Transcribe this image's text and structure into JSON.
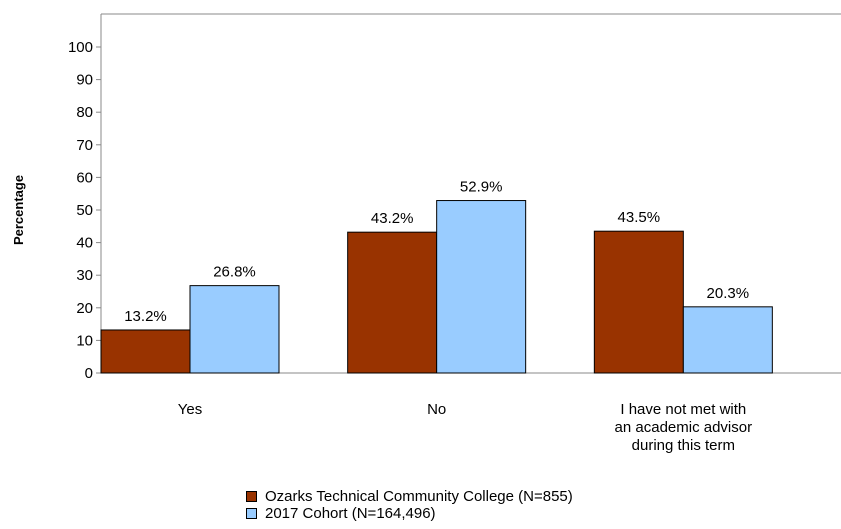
{
  "chart_data": {
    "type": "bar",
    "ylabel": "Percentage",
    "xlabel": "",
    "ylim": [
      0,
      100
    ],
    "yticks": [
      0,
      10,
      20,
      30,
      40,
      50,
      60,
      70,
      80,
      90,
      100
    ],
    "categories": [
      [
        "Yes"
      ],
      [
        "No"
      ],
      [
        "I have not met with",
        "an academic advisor",
        "during this term"
      ]
    ],
    "series": [
      {
        "name": "Ozarks Technical Community College (N=855)",
        "color": "#993300",
        "values": [
          13.2,
          43.2,
          43.5
        ],
        "labels": [
          "13.2%",
          "43.2%",
          "43.5%"
        ]
      },
      {
        "name": "2017 Cohort (N=164,496)",
        "color": "#99ccff",
        "values": [
          26.8,
          52.9,
          20.3
        ],
        "labels": [
          "26.8%",
          "52.9%",
          "20.3%"
        ]
      }
    ],
    "legend": "bottom",
    "grid": false
  }
}
